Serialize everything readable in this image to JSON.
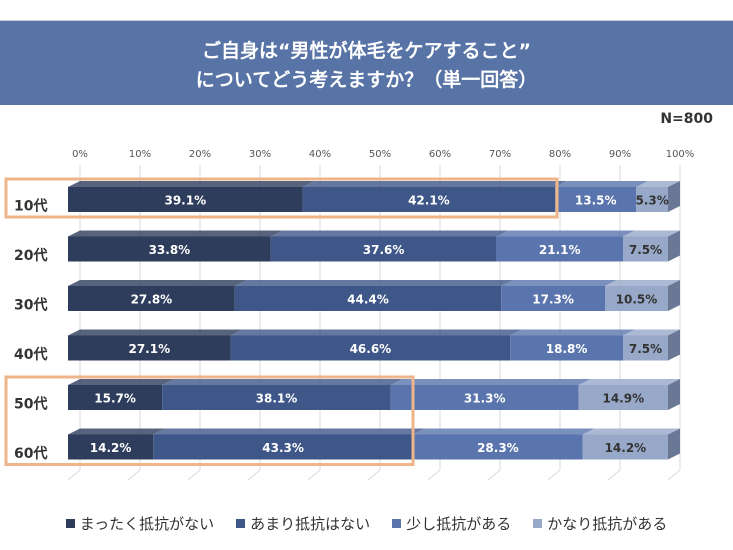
{
  "header": {
    "title_line1": "ご自身は“男性が体毛をケアすること”",
    "title_line2": "についてどう考えますか？（単一回答）"
  },
  "sample_size": "N=800",
  "colors": {
    "series": [
      "#2e3d5c",
      "#3f5688",
      "#5a75ad",
      "#97a8c9"
    ],
    "label_text": [
      "#ffffff",
      "#ffffff",
      "#ffffff",
      "#333333"
    ],
    "highlight": "#eeb48a",
    "header_bg": "#5873a6"
  },
  "highlights": [
    {
      "rows": [
        "10代"
      ],
      "extent_pct": 81.5
    },
    {
      "rows": [
        "50代",
        "60代"
      ],
      "extent_pct": 57.5
    }
  ],
  "chart_data": {
    "type": "bar",
    "orientation": "horizontal",
    "stacked": "100%",
    "title": "ご自身は“男性が体毛をケアすること”についてどう考えますか？（単一回答）",
    "xlabel": "",
    "ylabel": "",
    "xlim": [
      0,
      100
    ],
    "x_ticks": [
      "0%",
      "10%",
      "20%",
      "30%",
      "40%",
      "50%",
      "60%",
      "70%",
      "80%",
      "90%",
      "100%"
    ],
    "grid": true,
    "legend_position": "bottom",
    "categories": [
      "10代",
      "20代",
      "30代",
      "40代",
      "50代",
      "60代"
    ],
    "series": [
      {
        "name": "まったく抵抗がない",
        "values": [
          39.1,
          33.8,
          27.8,
          27.1,
          15.7,
          14.2
        ]
      },
      {
        "name": "あまり抵抗はない",
        "values": [
          42.1,
          37.6,
          44.4,
          46.6,
          38.1,
          43.3
        ]
      },
      {
        "name": "少し抵抗がある",
        "values": [
          13.5,
          21.1,
          17.3,
          18.8,
          31.3,
          28.3
        ]
      },
      {
        "name": "かなり抵抗がある",
        "values": [
          5.3,
          7.5,
          10.5,
          7.5,
          14.9,
          14.2
        ]
      }
    ]
  }
}
